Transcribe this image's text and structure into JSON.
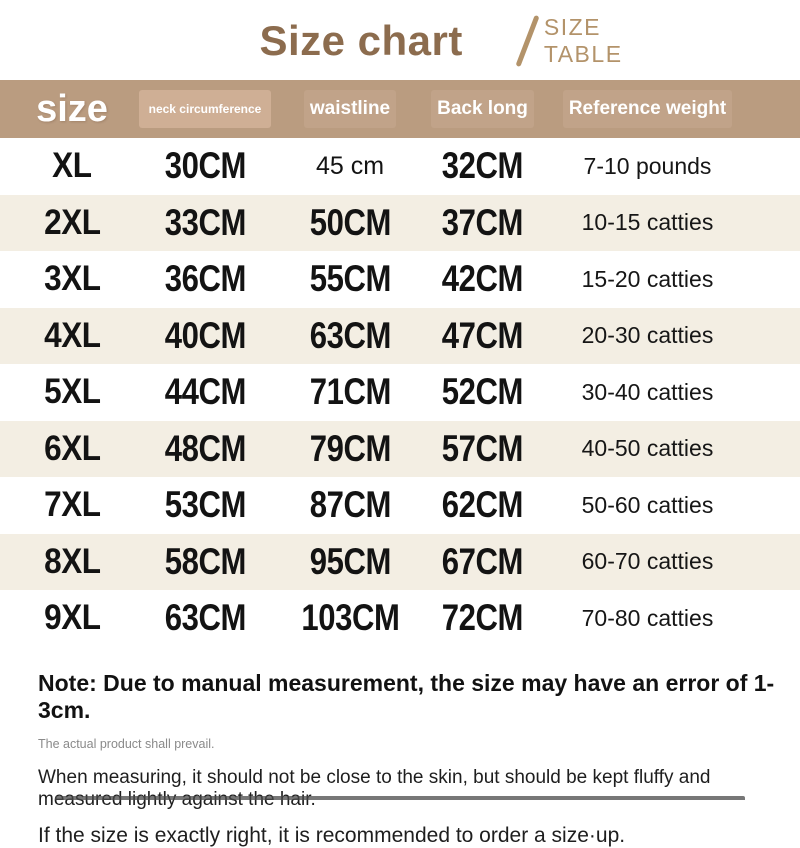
{
  "header": {
    "title": "Size chart",
    "subtitle_line1": "SIZE",
    "subtitle_line2": "TABLE"
  },
  "colors": {
    "header_band": "#ba9c80",
    "row_alt": "#f3eee3",
    "title_brown": "#8c6c4e",
    "subtitle_tan": "#b3936a",
    "text": "#131313",
    "muted_text": "#8a8a8a"
  },
  "table": {
    "columns": [
      "size",
      "neck circumference",
      "waistline",
      "Back long",
      "Reference weight"
    ],
    "rows": [
      {
        "size": "XL",
        "neck": "30CM",
        "waist": "45 cm",
        "back": "32CM",
        "weight": "7-10 pounds",
        "waist_small": true
      },
      {
        "size": "2XL",
        "neck": "33CM",
        "waist": "50CM",
        "back": "37CM",
        "weight": "10-15 catties",
        "waist_small": false
      },
      {
        "size": "3XL",
        "neck": "36CM",
        "waist": "55CM",
        "back": "42CM",
        "weight": "15-20 catties",
        "waist_small": false
      },
      {
        "size": "4XL",
        "neck": "40CM",
        "waist": "63CM",
        "back": "47CM",
        "weight": "20-30 catties",
        "waist_small": false
      },
      {
        "size": "5XL",
        "neck": "44CM",
        "waist": "71CM",
        "back": "52CM",
        "weight": "30-40 catties",
        "waist_small": false
      },
      {
        "size": "6XL",
        "neck": "48CM",
        "waist": "79CM",
        "back": "57CM",
        "weight": "40-50 catties",
        "waist_small": false
      },
      {
        "size": "7XL",
        "neck": "53CM",
        "waist": "87CM",
        "back": "62CM",
        "weight": "50-60 catties",
        "waist_small": false
      },
      {
        "size": "8XL",
        "neck": "58CM",
        "waist": "95CM",
        "back": "67CM",
        "weight": "60-70 catties",
        "waist_small": false
      },
      {
        "size": "9XL",
        "neck": "63CM",
        "waist": "103CM",
        "back": "72CM",
        "weight": "70-80 catties",
        "waist_small": false
      }
    ]
  },
  "notes": {
    "main": "Note: Due to manual measurement, the size may have an error of 1-3cm.",
    "small": "The actual product shall prevail.",
    "measuring": "When measuring, it should not be close to the skin, but should be kept fluffy and measured lightly against the hair.",
    "size_up": "If the size is exactly right, it is recommended to order a size·up."
  }
}
